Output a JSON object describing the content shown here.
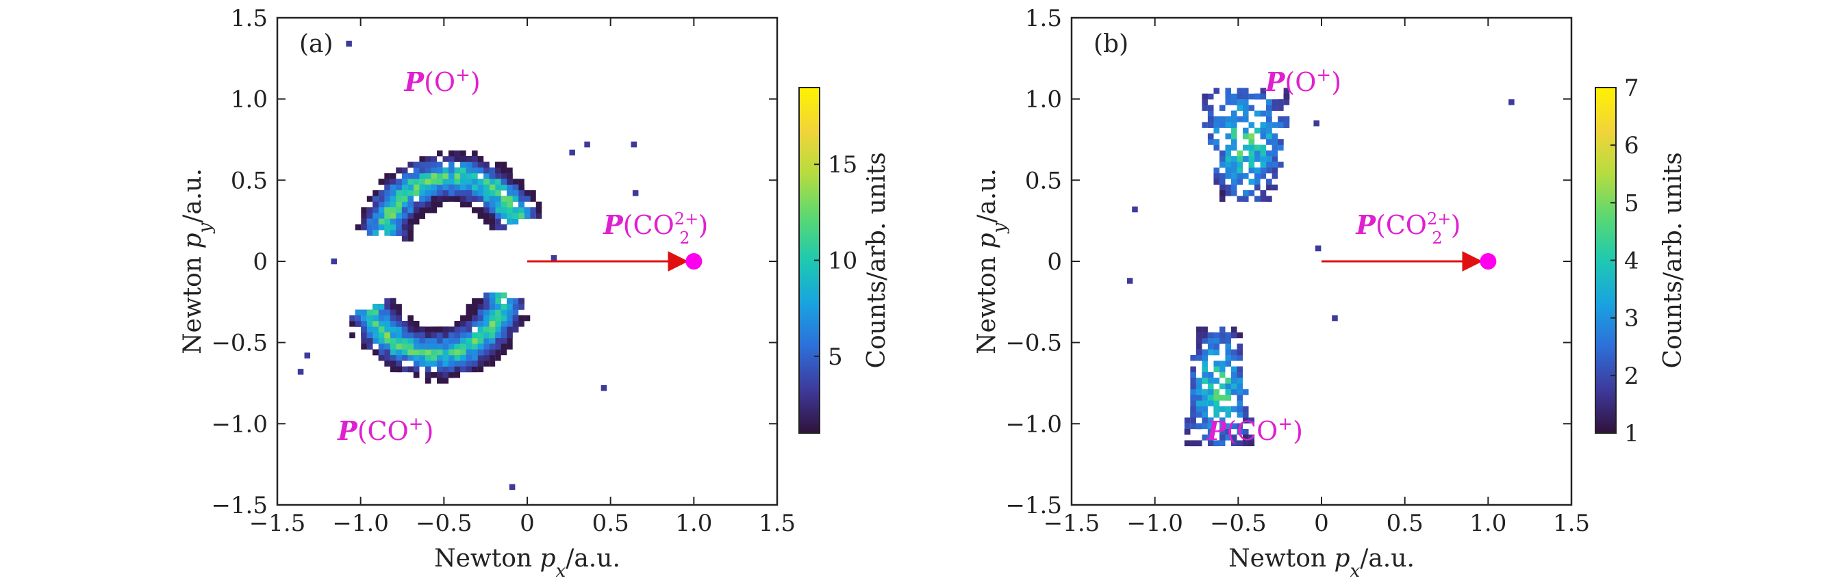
{
  "figure": {
    "colormap": [
      "#30123b",
      "#3e3a9b",
      "#2d6fd9",
      "#19a3e0",
      "#1ec9b0",
      "#5ad872",
      "#b6dc3f",
      "#f1d43a",
      "#fff200"
    ],
    "ion_label_color": "#e020d0",
    "arrow_color": "#e01010",
    "marker_color": "#ff00ee"
  },
  "chart_data": [
    {
      "type": "heatmap",
      "panel_tag": "(a)",
      "xlabel_prefix": "Newton ",
      "xlabel_var": "p",
      "xlabel_sub": "x",
      "xlabel_suffix": "/a.u.",
      "ylabel_prefix": "Newton ",
      "ylabel_var": "p",
      "ylabel_sub": "y",
      "ylabel_suffix": "/a.u.",
      "xlim": [
        -1.5,
        1.5
      ],
      "ylim": [
        -1.5,
        1.5
      ],
      "xticks": [
        "−1.5",
        "−1.0",
        "−0.5",
        "0",
        "0.5",
        "1.0",
        "1.5"
      ],
      "yticks": [
        "1.5",
        "1.0",
        "0.5",
        "0",
        "−0.5",
        "−1.0",
        "−1.5"
      ],
      "xtick_values": [
        -1.5,
        -1.0,
        -0.5,
        0,
        0.5,
        1.0,
        1.5
      ],
      "ytick_values": [
        1.5,
        1.0,
        0.5,
        0,
        -0.5,
        -1.0,
        -1.5
      ],
      "colorbar": {
        "label": "Counts/arb. units",
        "range": [
          1,
          19
        ],
        "ticks": [
          "5",
          "10",
          "15"
        ],
        "tick_values": [
          5,
          10,
          15
        ]
      },
      "labels": {
        "o_plus": {
          "symbol": "P",
          "text": "(O",
          "sup": "+",
          "close": ")",
          "x": -0.45,
          "y": 1.1
        },
        "co_plus": {
          "symbol": "P",
          "text": "(CO",
          "sup": "+",
          "close": ")",
          "x": -0.85,
          "y": -1.05
        },
        "co2": {
          "symbol": "P",
          "text": "(CO",
          "sub": "2",
          "sup": "2+",
          "close": ")",
          "x": 0.95,
          "y": 0.22
        }
      },
      "reference": {
        "arrow_from": [
          0,
          0
        ],
        "arrow_to": [
          1.0,
          0
        ],
        "marker": [
          1.0,
          0
        ]
      },
      "distribution": {
        "upper_arc": {
          "center": [
            -0.45,
            0.1
          ],
          "radius": 0.42,
          "angle_range": [
            20,
            170
          ],
          "peak": 19
        },
        "lower_arc": {
          "center": [
            -0.55,
            -0.15
          ],
          "radius": 0.42,
          "angle_range": [
            200,
            350
          ],
          "peak": 17
        }
      },
      "outliers": [
        [
          -1.07,
          1.34
        ],
        [
          0.27,
          0.67
        ],
        [
          0.36,
          0.72
        ],
        [
          0.64,
          0.72
        ],
        [
          0.65,
          0.42
        ],
        [
          0.16,
          0.02
        ],
        [
          -1.16,
          0.0
        ],
        [
          -1.32,
          -0.58
        ],
        [
          -1.36,
          -0.68
        ],
        [
          0.46,
          -0.78
        ],
        [
          -0.09,
          -1.39
        ]
      ]
    },
    {
      "type": "heatmap",
      "panel_tag": "(b)",
      "xlabel_prefix": "Newton ",
      "xlabel_var": "p",
      "xlabel_sub": "x",
      "xlabel_suffix": "/a.u.",
      "ylabel_prefix": "Newton ",
      "ylabel_var": "p",
      "ylabel_sub": "y",
      "ylabel_suffix": "/a.u.",
      "xlim": [
        -1.5,
        1.5
      ],
      "ylim": [
        -1.5,
        1.5
      ],
      "xticks": [
        "−1.5",
        "−1.0",
        "−0.5",
        "0",
        "0.5",
        "1.0",
        "1.5"
      ],
      "yticks": [
        "1.5",
        "1.0",
        "0.5",
        "0",
        "−0.5",
        "−1.0",
        "−1.5"
      ],
      "xtick_values": [
        -1.5,
        -1.0,
        -0.5,
        0,
        0.5,
        1.0,
        1.5
      ],
      "ytick_values": [
        1.5,
        1.0,
        0.5,
        0,
        -0.5,
        -1.0,
        -1.5
      ],
      "colorbar": {
        "label": "Counts/arb. units",
        "range": [
          1,
          7
        ],
        "ticks": [
          "1",
          "2",
          "3",
          "4",
          "5",
          "6",
          "7"
        ],
        "tick_values": [
          1,
          2,
          3,
          4,
          5,
          6,
          7
        ]
      },
      "labels": {
        "o_plus": {
          "symbol": "P",
          "text": "(O",
          "sup": "+",
          "close": ")",
          "x": -0.05,
          "y": 1.1
        },
        "co_plus": {
          "symbol": "P",
          "text": "(CO",
          "sup": "+",
          "close": ")",
          "x": -0.4,
          "y": -1.05
        },
        "co2": {
          "symbol": "P",
          "text": "(CO",
          "sub": "2",
          "sup": "2+",
          "close": ")",
          "x": 0.7,
          "y": 0.22
        }
      },
      "reference": {
        "arrow_from": [
          0,
          0
        ],
        "arrow_to": [
          1.0,
          0
        ],
        "marker": [
          1.0,
          0
        ]
      },
      "distribution": {
        "upper_lobe": {
          "center": [
            -0.45,
            0.72
          ],
          "spread": [
            0.16,
            0.22
          ],
          "peak": 7
        },
        "lower_lobe": {
          "center": [
            -0.62,
            -0.78
          ],
          "spread": [
            0.12,
            0.22
          ],
          "peak": 6
        }
      },
      "outliers": [
        [
          1.14,
          0.98
        ],
        [
          -1.12,
          0.32
        ],
        [
          -1.15,
          -0.12
        ],
        [
          0.08,
          -0.35
        ],
        [
          -0.02,
          0.08
        ],
        [
          -0.03,
          0.85
        ]
      ]
    }
  ]
}
